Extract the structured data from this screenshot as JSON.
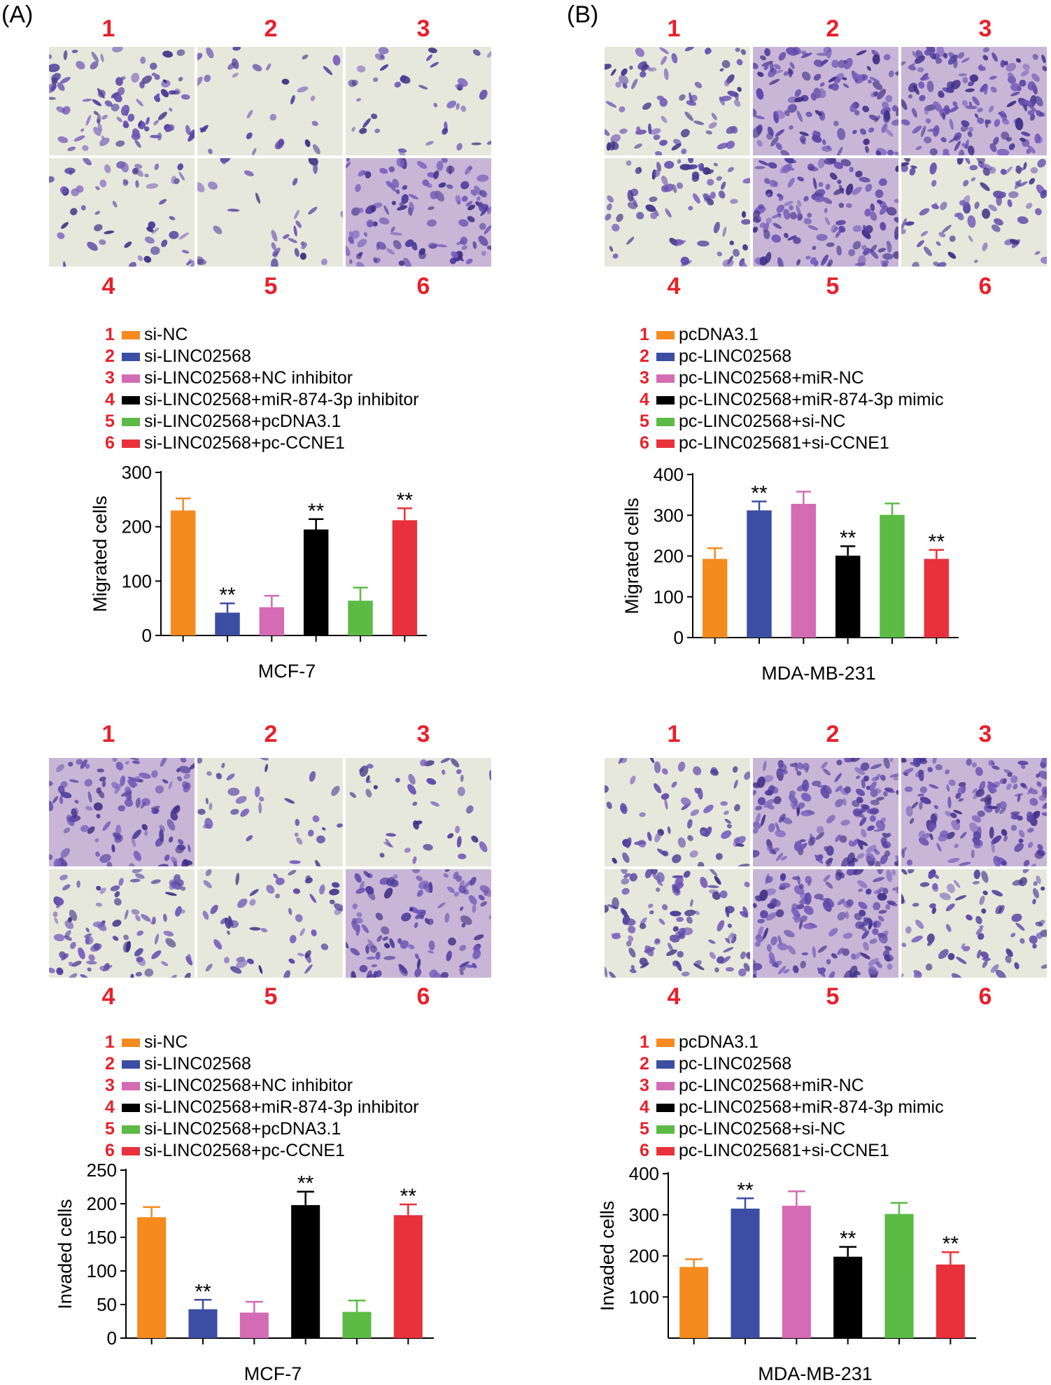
{
  "panels": [
    {
      "label": "(A)"
    },
    {
      "label": "(B)"
    }
  ],
  "image_labels": {
    "top": [
      "1",
      "2",
      "3"
    ],
    "bottom": [
      "4",
      "5",
      "6"
    ]
  },
  "legend_A": {
    "entries": [
      {
        "num": "1",
        "label": "si-NC",
        "color": "#f58a1f"
      },
      {
        "num": "2",
        "label": "si-LINC02568",
        "color": "#3b4ea3"
      },
      {
        "num": "3",
        "label": "si-LINC02568+NC inhibitor",
        "color": "#d46bb4"
      },
      {
        "num": "4",
        "label": "si-LINC02568+miR-874-3p inhibitor",
        "color": "#000000"
      },
      {
        "num": "5",
        "label": "si-LINC02568+pcDNA3.1",
        "color": "#5bbb45"
      },
      {
        "num": "6",
        "label": "si-LINC02568+pc-CCNE1",
        "color": "#e8313b"
      }
    ]
  },
  "legend_B": {
    "entries": [
      {
        "num": "1",
        "label": "pcDNA3.1",
        "color": "#f58a1f"
      },
      {
        "num": "2",
        "label": "pc-LINC02568",
        "color": "#3b4ea3"
      },
      {
        "num": "3",
        "label": "pc-LINC02568+miR-NC",
        "color": "#d46bb4"
      },
      {
        "num": "4",
        "label": "pc-LINC02568+miR-874-3p mimic",
        "color": "#000000"
      },
      {
        "num": "5",
        "label": "pc-LINC02568+si-NC",
        "color": "#5bbb45"
      },
      {
        "num": "6",
        "label": "pc-LINC025681+si-CCNE1",
        "color": "#e8313b"
      }
    ]
  },
  "chart_data": [
    {
      "id": "A-migrated",
      "type": "bar",
      "categories": [
        "1",
        "2",
        "3",
        "4",
        "5",
        "6"
      ],
      "values": [
        230,
        42,
        52,
        195,
        64,
        212
      ],
      "errors": [
        22,
        17,
        21,
        19,
        24,
        22
      ],
      "significance": [
        "",
        "**",
        "",
        "**",
        "",
        "**"
      ],
      "colors": [
        "#f58a1f",
        "#3b4ea3",
        "#d46bb4",
        "#000000",
        "#5bbb45",
        "#e8313b"
      ],
      "ylabel": "Migrated cells",
      "xlabel": "MCF-7",
      "ylim": [
        0,
        300
      ],
      "yticks": [
        0,
        100,
        200,
        300
      ]
    },
    {
      "id": "B-migrated",
      "type": "bar",
      "categories": [
        "1",
        "2",
        "3",
        "4",
        "5",
        "6"
      ],
      "values": [
        193,
        312,
        328,
        201,
        301,
        193
      ],
      "errors": [
        26,
        22,
        30,
        23,
        28,
        22
      ],
      "significance": [
        "",
        "**",
        "",
        "**",
        "",
        "**"
      ],
      "colors": [
        "#f58a1f",
        "#3b4ea3",
        "#d46bb4",
        "#000000",
        "#5bbb45",
        "#e8313b"
      ],
      "ylabel": "Migrated cells",
      "xlabel": "MDA-MB-231",
      "ylim": [
        0,
        400
      ],
      "yticks": [
        0,
        100,
        200,
        300,
        400
      ]
    },
    {
      "id": "A-invaded",
      "type": "bar",
      "categories": [
        "1",
        "2",
        "3",
        "4",
        "5",
        "6"
      ],
      "values": [
        180,
        43,
        38,
        198,
        39,
        183
      ],
      "errors": [
        15,
        14,
        16,
        20,
        17,
        16
      ],
      "significance": [
        "",
        "**",
        "",
        "**",
        "",
        "**"
      ],
      "colors": [
        "#f58a1f",
        "#3b4ea3",
        "#d46bb4",
        "#000000",
        "#5bbb45",
        "#e8313b"
      ],
      "ylabel": "Invaded cells",
      "xlabel": "MCF-7",
      "ylim": [
        0,
        250
      ],
      "yticks": [
        0,
        50,
        100,
        150,
        200,
        250
      ]
    },
    {
      "id": "B-invaded",
      "type": "bar",
      "categories": [
        "1",
        "2",
        "3",
        "4",
        "5",
        "6"
      ],
      "values": [
        173,
        315,
        322,
        198,
        302,
        179
      ],
      "errors": [
        19,
        25,
        35,
        24,
        27,
        30
      ],
      "significance": [
        "",
        "**",
        "",
        "**",
        "",
        "**"
      ],
      "colors": [
        "#f58a1f",
        "#3b4ea3",
        "#d46bb4",
        "#000000",
        "#5bbb45",
        "#e8313b"
      ],
      "ylabel": "Invaded cells",
      "xlabel": "MDA-MB-231",
      "ylim": [
        0,
        400
      ],
      "yticks": [
        100,
        200,
        300,
        400
      ]
    }
  ]
}
